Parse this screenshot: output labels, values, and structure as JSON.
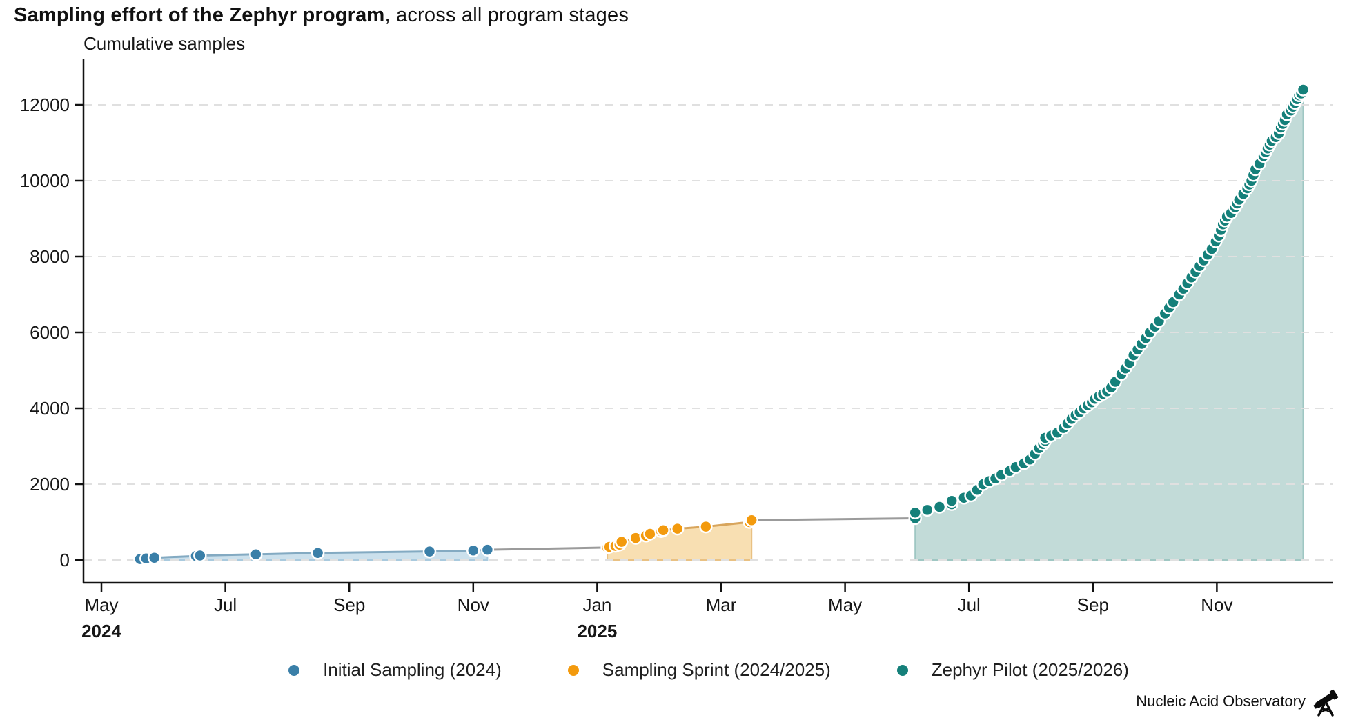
{
  "title": {
    "bold": "Sampling effort of the Zephyr program",
    "rest": ", across all program stages"
  },
  "footer": {
    "brand": "Nucleic Acid Observatory",
    "icon": "telescope-dna-icon"
  },
  "chart_data": {
    "type": "scatter",
    "title": "Sampling effort of the Zephyr program, across all program stages",
    "ylabel": "Cumulative samples",
    "xlabel": "",
    "ylim": [
      0,
      12800
    ],
    "yticks": [
      0,
      2000,
      4000,
      6000,
      8000,
      10000,
      12000
    ],
    "grid": "horizontal dashed",
    "legend_position": "bottom center",
    "axis_color": "#111111",
    "gridline_color": "#e0e0e0",
    "connector_color": "#9b9b9b",
    "x_ticks": [
      {
        "label": "May",
        "date": "2024-05-01",
        "year": "2024"
      },
      {
        "label": "Jul",
        "date": "2024-07-01"
      },
      {
        "label": "Sep",
        "date": "2024-09-01"
      },
      {
        "label": "Nov",
        "date": "2024-11-01"
      },
      {
        "label": "Jan",
        "date": "2025-01-01",
        "year": "2025"
      },
      {
        "label": "Mar",
        "date": "2025-03-01"
      },
      {
        "label": "May",
        "date": "2025-05-01"
      },
      {
        "label": "Jul",
        "date": "2025-07-01"
      },
      {
        "label": "Sep",
        "date": "2025-09-01"
      },
      {
        "label": "Nov",
        "date": "2025-11-01"
      }
    ],
    "series": [
      {
        "name": "Initial Sampling (2024)",
        "dot_color": "#3a7fa8",
        "line_color": "#83aac2",
        "fill_color": "#cbe0ec",
        "fill_border": "#a9cade",
        "points": [
          [
            "2024-05-20",
            25
          ],
          [
            "2024-05-23",
            40
          ],
          [
            "2024-05-27",
            60
          ],
          [
            "2024-06-17",
            105
          ],
          [
            "2024-06-19",
            118
          ],
          [
            "2024-07-16",
            150
          ],
          [
            "2024-08-16",
            185
          ],
          [
            "2024-10-10",
            225
          ],
          [
            "2024-11-01",
            250
          ],
          [
            "2024-11-08",
            270
          ]
        ]
      },
      {
        "name": "Sampling Sprint (2024/2025)",
        "dot_color": "#f39a0d",
        "line_color": "#d8a55c",
        "fill_color": "#f8dfb2",
        "fill_border": "#e9c183",
        "points": [
          [
            "2025-01-06",
            330
          ],
          [
            "2025-01-07",
            345
          ],
          [
            "2025-01-10",
            370
          ],
          [
            "2025-01-12",
            405
          ],
          [
            "2025-01-13",
            480
          ],
          [
            "2025-01-20",
            580
          ],
          [
            "2025-01-25",
            640
          ],
          [
            "2025-01-27",
            690
          ],
          [
            "2025-02-02",
            760
          ],
          [
            "2025-02-03",
            785
          ],
          [
            "2025-02-10",
            825
          ],
          [
            "2025-02-24",
            880
          ],
          [
            "2025-03-15",
            1000
          ],
          [
            "2025-03-16",
            1050
          ]
        ]
      },
      {
        "name": "Zephyr Pilot (2025/2026)",
        "dot_color": "#15807a",
        "line_color": "#649c97",
        "fill_color": "#c2dbd8",
        "fill_border": "#9fc7c3",
        "points": [
          [
            "2025-06-05",
            1100
          ],
          [
            "2025-06-05",
            1250
          ],
          [
            "2025-06-11",
            1320
          ],
          [
            "2025-06-17",
            1400
          ],
          [
            "2025-06-23",
            1470
          ],
          [
            "2025-06-23",
            1560
          ],
          [
            "2025-06-29",
            1640
          ],
          [
            "2025-07-02",
            1700
          ],
          [
            "2025-07-05",
            1850
          ],
          [
            "2025-07-08",
            2000
          ],
          [
            "2025-07-11",
            2080
          ],
          [
            "2025-07-14",
            2150
          ],
          [
            "2025-07-17",
            2250
          ],
          [
            "2025-07-21",
            2350
          ],
          [
            "2025-07-24",
            2450
          ],
          [
            "2025-07-28",
            2550
          ],
          [
            "2025-07-31",
            2650
          ],
          [
            "2025-08-03",
            2800
          ],
          [
            "2025-08-05",
            2950
          ],
          [
            "2025-08-07",
            3060
          ],
          [
            "2025-08-08",
            3140
          ],
          [
            "2025-08-08",
            3220
          ],
          [
            "2025-08-11",
            3280
          ],
          [
            "2025-08-14",
            3360
          ],
          [
            "2025-08-17",
            3480
          ],
          [
            "2025-08-19",
            3600
          ],
          [
            "2025-08-21",
            3720
          ],
          [
            "2025-08-23",
            3820
          ],
          [
            "2025-08-25",
            3900
          ],
          [
            "2025-08-27",
            4000
          ],
          [
            "2025-08-29",
            4080
          ],
          [
            "2025-08-31",
            4160
          ],
          [
            "2025-09-02",
            4250
          ],
          [
            "2025-09-04",
            4320
          ],
          [
            "2025-09-06",
            4380
          ],
          [
            "2025-09-08",
            4450
          ],
          [
            "2025-09-10",
            4550
          ],
          [
            "2025-09-12",
            4700
          ],
          [
            "2025-09-15",
            4900
          ],
          [
            "2025-09-17",
            5050
          ],
          [
            "2025-09-19",
            5200
          ],
          [
            "2025-09-21",
            5400
          ],
          [
            "2025-09-23",
            5550
          ],
          [
            "2025-09-25",
            5700
          ],
          [
            "2025-09-27",
            5850
          ],
          [
            "2025-09-29",
            6000
          ],
          [
            "2025-10-01",
            6150
          ],
          [
            "2025-10-03",
            6300
          ],
          [
            "2025-10-06",
            6500
          ],
          [
            "2025-10-08",
            6650
          ],
          [
            "2025-10-10",
            6800
          ],
          [
            "2025-10-13",
            7000
          ],
          [
            "2025-10-15",
            7150
          ],
          [
            "2025-10-17",
            7300
          ],
          [
            "2025-10-19",
            7450
          ],
          [
            "2025-10-21",
            7600
          ],
          [
            "2025-10-23",
            7750
          ],
          [
            "2025-10-25",
            7900
          ],
          [
            "2025-10-27",
            8050
          ],
          [
            "2025-10-29",
            8200
          ],
          [
            "2025-10-31",
            8400
          ],
          [
            "2025-11-02",
            8550
          ],
          [
            "2025-11-03",
            8700
          ],
          [
            "2025-11-04",
            8850
          ],
          [
            "2025-11-05",
            8950
          ],
          [
            "2025-11-06",
            9050
          ],
          [
            "2025-11-08",
            9150
          ],
          [
            "2025-11-10",
            9300
          ],
          [
            "2025-11-11",
            9400
          ],
          [
            "2025-11-12",
            9500
          ],
          [
            "2025-11-14",
            9650
          ],
          [
            "2025-11-16",
            9800
          ],
          [
            "2025-11-17",
            9900
          ],
          [
            "2025-11-18",
            10000
          ],
          [
            "2025-11-19",
            10150
          ],
          [
            "2025-11-20",
            10300
          ],
          [
            "2025-11-22",
            10450
          ],
          [
            "2025-11-24",
            10650
          ],
          [
            "2025-11-25",
            10750
          ],
          [
            "2025-11-26",
            10850
          ],
          [
            "2025-11-27",
            10950
          ],
          [
            "2025-11-28",
            11050
          ],
          [
            "2025-11-30",
            11150
          ],
          [
            "2025-12-01",
            11250
          ],
          [
            "2025-12-02",
            11400
          ],
          [
            "2025-12-03",
            11500
          ],
          [
            "2025-12-04",
            11600
          ],
          [
            "2025-12-05",
            11750
          ],
          [
            "2025-12-07",
            11850
          ],
          [
            "2025-12-08",
            11950
          ],
          [
            "2025-12-09",
            12050
          ],
          [
            "2025-12-10",
            12150
          ],
          [
            "2025-12-11",
            12250
          ],
          [
            "2025-12-12",
            12300
          ],
          [
            "2025-12-13",
            12400
          ]
        ]
      }
    ]
  }
}
